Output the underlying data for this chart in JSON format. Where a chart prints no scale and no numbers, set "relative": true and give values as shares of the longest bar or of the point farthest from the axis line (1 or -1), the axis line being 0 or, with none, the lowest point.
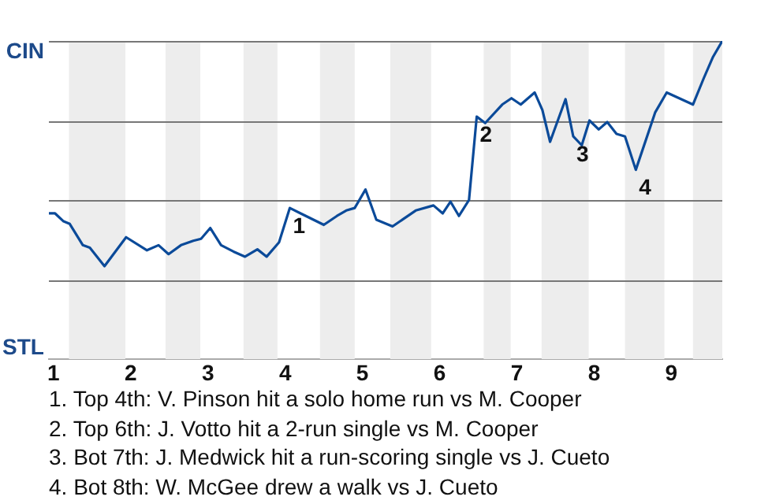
{
  "chart_data": {
    "type": "line",
    "relative": true,
    "x": [
      0.94,
      1.02,
      1.13,
      1.21,
      1.38,
      1.47,
      1.66,
      1.94,
      2.21,
      2.36,
      2.49,
      2.65,
      2.81,
      2.91,
      3.03,
      3.17,
      3.33,
      3.48,
      3.64,
      3.76,
      3.92,
      4.06,
      4.2,
      4.5,
      4.67,
      4.79,
      4.9,
      5.04,
      5.18,
      5.39,
      5.69,
      5.92,
      6.04,
      6.14,
      6.25,
      6.38,
      6.48,
      6.59,
      6.81,
      6.93,
      7.05,
      7.23,
      7.33,
      7.43,
      7.63,
      7.73,
      7.84,
      7.94,
      8.06,
      8.17,
      8.29,
      8.4,
      8.54,
      8.79,
      8.94,
      9.28,
      9.42,
      9.54,
      9.66
    ],
    "series": [
      {
        "color": "#0b4a99",
        "values": [
          0.458,
          0.458,
          0.433,
          0.425,
          0.358,
          0.35,
          0.292,
          0.383,
          0.342,
          0.358,
          0.33,
          0.358,
          0.372,
          0.378,
          0.412,
          0.358,
          0.338,
          0.322,
          0.345,
          0.322,
          0.367,
          0.475,
          0.458,
          0.422,
          0.45,
          0.467,
          0.475,
          0.533,
          0.438,
          0.417,
          0.467,
          0.483,
          0.458,
          0.495,
          0.45,
          0.5,
          0.762,
          0.742,
          0.8,
          0.82,
          0.8,
          0.838,
          0.783,
          0.683,
          0.817,
          0.7,
          0.672,
          0.75,
          0.722,
          0.745,
          0.708,
          0.7,
          0.595,
          0.775,
          0.838,
          0.8,
          0.883,
          0.95,
          1
        ]
      }
    ],
    "xlim": [
      0.94,
      9.66
    ],
    "xticks": [
      1,
      2,
      3,
      4,
      5,
      6,
      7,
      8,
      9
    ],
    "marker": "none",
    "line_style": "solid",
    "ref_lines": [
      {
        "axis": "y",
        "value": 1,
        "label": "CIN",
        "color": "#777777"
      },
      {
        "axis": "y",
        "value": 0.75,
        "color": "#777777"
      },
      {
        "axis": "y",
        "value": 0.5,
        "color": "#777777"
      },
      {
        "axis": "y",
        "value": 0.25,
        "color": "#777777"
      }
    ],
    "bands": [
      {
        "axis": "x",
        "from": 1.2,
        "to": 1.93,
        "color": "#ededed"
      },
      {
        "axis": "x",
        "from": 2.45,
        "to": 2.9,
        "color": "#ededed"
      },
      {
        "axis": "x",
        "from": 3.46,
        "to": 3.9,
        "color": "#ededed"
      },
      {
        "axis": "x",
        "from": 4.45,
        "to": 4.9,
        "color": "#ededed"
      },
      {
        "axis": "x",
        "from": 5.36,
        "to": 5.89,
        "color": "#ededed"
      },
      {
        "axis": "x",
        "from": 6.57,
        "to": 6.92,
        "color": "#ededed"
      },
      {
        "axis": "x",
        "from": 7.32,
        "to": 7.93,
        "color": "#ededed"
      },
      {
        "axis": "x",
        "from": 8.4,
        "to": 8.91,
        "color": "#ededed"
      },
      {
        "axis": "x",
        "from": 9.28,
        "to": 9.66,
        "color": "#ededed"
      }
    ],
    "annotations": [
      "STL",
      {
        "text": "1",
        "x": 4.06,
        "y": 0.475
      },
      {
        "text": "2",
        "x": 6.48,
        "y": 0.762
      },
      {
        "text": "3",
        "x": 7.73,
        "y": 0.7
      },
      {
        "text": "4",
        "x": 8.54,
        "y": 0.595
      },
      "1. Top 4th: V. Pinson hit a solo home run vs M. Cooper",
      "2. Top 6th: J. Votto hit a 2-run single vs M. Cooper",
      "3. Bot 7th: J. Medwick hit a run-scoring single vs J. Cueto",
      "4. Bot 8th: W. McGee drew a walk vs J. Cueto"
    ]
  }
}
